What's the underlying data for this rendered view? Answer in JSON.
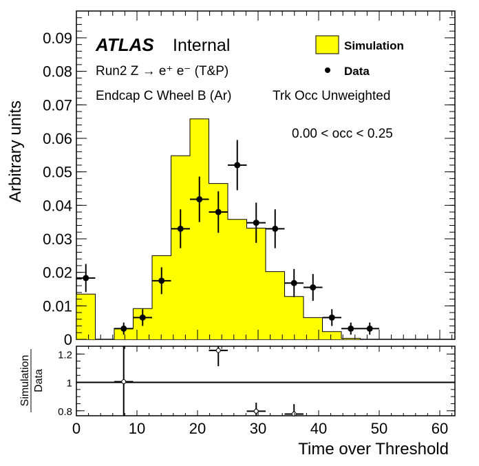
{
  "chart_data": [
    {
      "type": "histogram",
      "panel": "main",
      "ylabel": "Arbitrary units",
      "xlim": [
        0,
        62.5
      ],
      "ylim": [
        0,
        0.098
      ],
      "x_ticks": [
        0,
        10,
        20,
        30,
        40,
        50,
        60
      ],
      "y_ticks": [
        0,
        0.01,
        0.02,
        0.03,
        0.04,
        0.05,
        0.06,
        0.07,
        0.08,
        0.09
      ],
      "y_tick_labels": [
        "0",
        "0.01",
        "0.02",
        "0.03",
        "0.04",
        "0.05",
        "0.06",
        "0.07",
        "0.08",
        "0.09"
      ],
      "atlas_label": "ATLAS",
      "atlas_status": "Internal",
      "annotations": {
        "process": "Run2 Z → e⁺ e⁻ (T&P)",
        "region": "Endcap C Wheel B (Ar)",
        "weighting": "Trk Occ Unweighted",
        "occupancy": "0.00 < occ < 0.25"
      },
      "series": [
        {
          "name": "Simulation",
          "kind": "filled-histogram",
          "color": "#ffff00",
          "bin_edges": [
            0,
            3.125,
            6.25,
            9.375,
            12.5,
            15.625,
            18.75,
            21.875,
            25,
            28.125,
            31.25,
            34.375,
            37.5,
            40.625,
            43.75,
            46.875,
            50,
            53.125,
            56.25,
            59.375,
            62.5
          ],
          "values": [
            0.0135,
            0.0,
            0.0033,
            0.0092,
            0.025,
            0.0548,
            0.0658,
            0.0465,
            0.0358,
            0.0332,
            0.0202,
            0.0128,
            0.0065,
            0.0023,
            0.0003,
            0.0,
            0.0,
            0.0,
            0.0,
            0.0
          ]
        },
        {
          "name": "Data",
          "kind": "points-with-errors",
          "color": "#000000",
          "x": [
            1.5625,
            7.8125,
            10.9375,
            14.0625,
            17.1875,
            20.3125,
            23.4375,
            26.5625,
            29.6875,
            32.8125,
            35.9375,
            39.0625,
            42.1875,
            45.3125,
            48.4375
          ],
          "y": [
            0.0183,
            0.0032,
            0.0065,
            0.0175,
            0.033,
            0.0418,
            0.038,
            0.052,
            0.0348,
            0.033,
            0.0168,
            0.0155,
            0.0065,
            0.0032,
            0.0032
          ],
          "y_err": [
            0.0042,
            0.0018,
            0.0025,
            0.004,
            0.0058,
            0.0068,
            0.0062,
            0.0075,
            0.006,
            0.0058,
            0.0042,
            0.004,
            0.0025,
            0.0018,
            0.0018
          ],
          "x_err": 1.5625
        }
      ]
    },
    {
      "type": "scatter",
      "panel": "ratio",
      "ylabel_numerator": "Simulation",
      "ylabel_denominator": "Data",
      "xlabel": "Time over Threshold",
      "xlim": [
        0,
        62.5
      ],
      "ylim": [
        0.765,
        1.255
      ],
      "reference_line": 1,
      "x_ticks": [
        0,
        10,
        20,
        30,
        40,
        50,
        60
      ],
      "x_tick_labels": [
        "0",
        "10",
        "20",
        "30",
        "40",
        "50",
        "60"
      ],
      "y_ticks": [
        0.8,
        1,
        1.2
      ],
      "y_tick_labels": [
        "0.8",
        "1",
        "1.2"
      ],
      "points": {
        "x": [
          7.8125,
          23.4375,
          29.6875,
          35.9375
        ],
        "y": [
          1.005,
          1.225,
          0.797,
          0.777
        ],
        "y_err": [
          0.45,
          0.11,
          0.06,
          0.07
        ],
        "x_err": 1.5625
      }
    }
  ]
}
